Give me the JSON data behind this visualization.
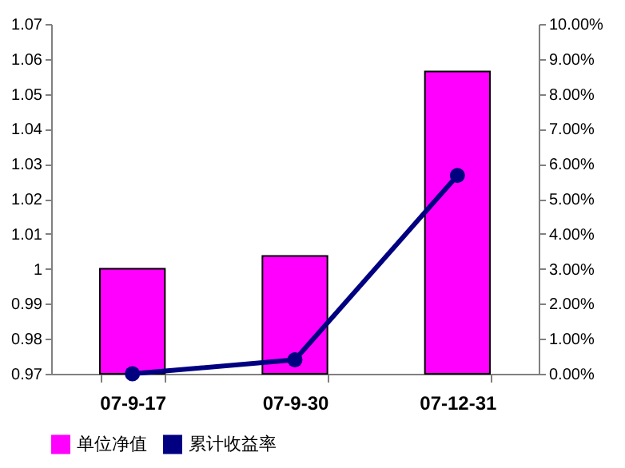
{
  "chart_data": {
    "type": "bar",
    "categories": [
      "07-9-17",
      "07-9-30",
      "07-12-31"
    ],
    "series": [
      {
        "name": "单位净值",
        "color": "#ff00ff",
        "values": [
          1.0,
          1.0037,
          1.0564
        ]
      },
      {
        "name": "累计收益率",
        "type": "line",
        "axis": "y2",
        "color": "#000080",
        "values": [
          0.0,
          0.4,
          5.67
        ]
      }
    ],
    "ylim": [
      0.97,
      1.07
    ],
    "yticks": [
      0.97,
      0.98,
      0.99,
      1,
      1.01,
      1.02,
      1.03,
      1.04,
      1.05,
      1.06,
      1.07
    ],
    "y2lim": [
      0,
      10
    ],
    "y2ticks": [
      {
        "value": 0,
        "label": "0.00%"
      },
      {
        "value": 1,
        "label": "1.00%"
      },
      {
        "value": 2,
        "label": "2.00%"
      },
      {
        "value": 3,
        "label": "3.00%"
      },
      {
        "value": 4,
        "label": "4.00%"
      },
      {
        "value": 5,
        "label": "5.00%"
      },
      {
        "value": 6,
        "label": "6.00%"
      },
      {
        "value": 7,
        "label": "7.00%"
      },
      {
        "value": 8,
        "label": "8.00%"
      },
      {
        "value": 9,
        "label": "9.00%"
      },
      {
        "value": 10,
        "label": "10.00%"
      }
    ],
    "grid": false,
    "legend": "bottom",
    "marker": "circle"
  }
}
